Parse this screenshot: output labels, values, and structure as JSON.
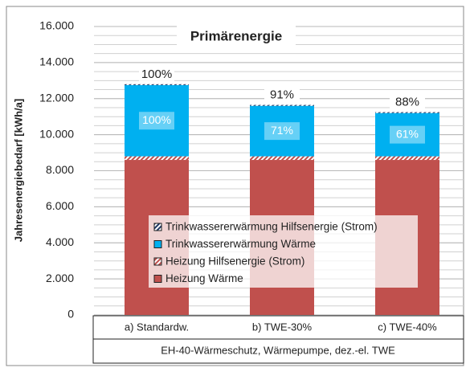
{
  "chart_data": {
    "type": "stacked_bar",
    "title": "Primärenergie",
    "y_label": "Jahresenergiebedarf [kWh/a]",
    "categories": [
      "a) Standardw.",
      "b) TWE-30%",
      "c) TWE-40%"
    ],
    "group_label": "EH-40-Wärmeschutz, Wärmepumpe, dez.-el. TWE",
    "series": [
      {
        "name": "Heizung Wärme",
        "color": "#c0504d",
        "hatched": false,
        "values": [
          8600,
          8600,
          8600
        ]
      },
      {
        "name": "Heizung Hilfsenergie (Strom)",
        "color": "#c0504d",
        "hatched": true,
        "values": [
          200,
          200,
          200
        ]
      },
      {
        "name": "Trinkwassererwärmung Wärme",
        "color": "#00b0f0",
        "hatched": false,
        "values": [
          3950,
          2800,
          2400
        ],
        "inner_labels": [
          "100%",
          "71%",
          "61%"
        ]
      },
      {
        "name": "Trinkwassererwärmung Hilfsenergie (Strom)",
        "color": "#1f3864",
        "hatched": true,
        "values": [
          50,
          50,
          50
        ]
      }
    ],
    "top_labels": [
      "100%",
      "91%",
      "88%"
    ],
    "ylim": [
      0,
      16000
    ],
    "yticks": [
      0,
      {
        "value": 2000,
        "label": "2.000"
      },
      {
        "value": 4000,
        "label": "4.000"
      },
      {
        "value": 6000,
        "label": "6.000"
      },
      {
        "value": 8000,
        "label": "8.000"
      },
      {
        "value": 10000,
        "label": "10.000"
      },
      {
        "value": 12000,
        "label": "12.000"
      },
      {
        "value": 14000,
        "label": "14.000"
      },
      {
        "value": 16000,
        "label": "16.000"
      }
    ],
    "minor_grid_step": 500,
    "grid": true
  }
}
